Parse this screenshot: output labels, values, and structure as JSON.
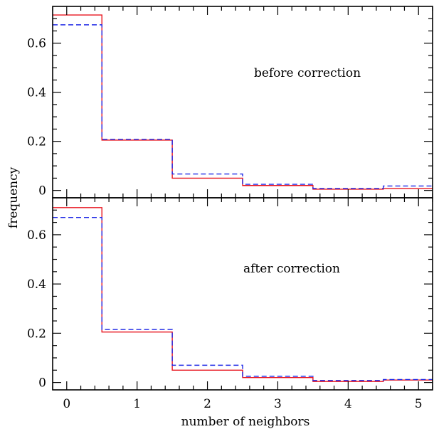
{
  "chart_data": [
    {
      "type": "line",
      "step": true,
      "annotation": "before correction",
      "xlabel": "number of neighbors",
      "ylabel": "frequency",
      "xlim": [
        -0.2,
        5.2
      ],
      "ylim": [
        -0.03,
        0.75
      ],
      "yticks": [
        "0",
        "0.2",
        "0.4",
        "0.6"
      ],
      "xticks": [
        "0",
        "1",
        "2",
        "3",
        "4",
        "5"
      ],
      "x": [
        0,
        1,
        2,
        3,
        4,
        5
      ],
      "series": [
        {
          "style": "solid",
          "color": "#e8141e",
          "values": [
            0.715,
            0.205,
            0.05,
            0.02,
            0.005,
            0.008
          ]
        },
        {
          "style": "dashed",
          "color": "#1e28e6",
          "values": [
            0.675,
            0.208,
            0.067,
            0.025,
            0.008,
            0.018
          ]
        }
      ]
    },
    {
      "type": "line",
      "step": true,
      "annotation": "after correction",
      "xlabel": "number of neighbors",
      "ylabel": "frequency",
      "xlim": [
        -0.2,
        5.2
      ],
      "ylim": [
        -0.03,
        0.75
      ],
      "yticks": [
        "0",
        "0.2",
        "0.4",
        "0.6"
      ],
      "xticks": [
        "0",
        "1",
        "2",
        "3",
        "4",
        "5"
      ],
      "x": [
        0,
        1,
        2,
        3,
        4,
        5
      ],
      "series": [
        {
          "style": "solid",
          "color": "#e8141e",
          "values": [
            0.71,
            0.205,
            0.05,
            0.02,
            0.004,
            0.01
          ]
        },
        {
          "style": "dashed",
          "color": "#1e28e6",
          "values": [
            0.67,
            0.215,
            0.07,
            0.025,
            0.008,
            0.012
          ]
        }
      ]
    }
  ]
}
